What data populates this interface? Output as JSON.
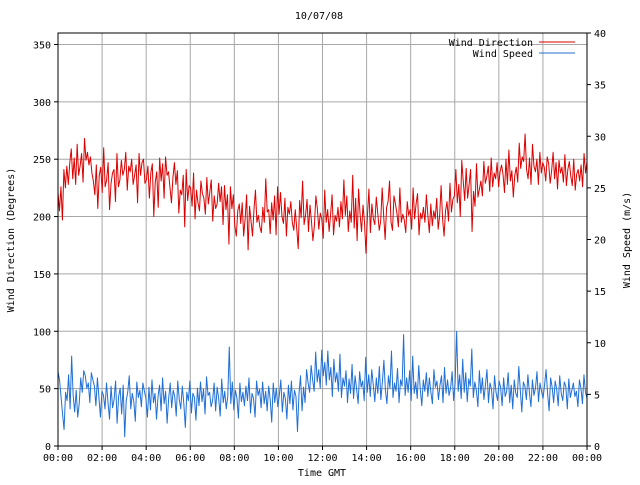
{
  "chart_data": {
    "type": "line",
    "title": "10/07/08",
    "xlabel": "Time GMT",
    "ylabel_left": "Wind Direction (Degrees)",
    "ylabel_right": "Wind Speed (m/s)",
    "x_ticks": [
      "00:00",
      "02:00",
      "04:00",
      "06:00",
      "08:00",
      "10:00",
      "12:00",
      "14:00",
      "16:00",
      "18:00",
      "20:00",
      "22:00",
      "00:00"
    ],
    "y_left_ticks": [
      "0",
      "50",
      "100",
      "150",
      "200",
      "250",
      "300",
      "350"
    ],
    "y_right_ticks": [
      "0",
      "5",
      "10",
      "15",
      "20",
      "25",
      "30",
      "35",
      "40"
    ],
    "y_left_range": [
      0,
      360
    ],
    "y_right_range": [
      0,
      40
    ],
    "grid": true,
    "legend_position": "top-right",
    "series": [
      {
        "name": "Wind Direction",
        "axis": "left",
        "color": "#dd0000",
        "values": [
          221,
          205,
          226,
          197,
          241,
          225,
          244,
          228,
          247,
          259,
          233,
          251,
          228,
          263,
          236,
          244,
          255,
          230,
          268,
          249,
          256,
          245,
          252,
          238,
          231,
          219,
          245,
          207,
          236,
          243,
          221,
          260,
          226,
          232,
          247,
          206,
          229,
          238,
          241,
          213,
          255,
          226,
          232,
          249,
          236,
          241,
          256,
          223,
          244,
          239,
          250,
          228,
          236,
          245,
          212,
          255,
          236,
          247,
          250,
          229,
          232,
          244,
          216,
          238,
          246,
          200,
          230,
          239,
          208,
          251,
          231,
          246,
          216,
          252,
          236,
          239,
          225,
          212,
          234,
          247,
          228,
          240,
          203,
          223,
          219,
          236,
          191,
          241,
          214,
          227,
          225,
          209,
          238,
          198,
          223,
          212,
          205,
          231,
          220,
          216,
          202,
          234,
          211,
          221,
          232,
          196,
          218,
          207,
          211,
          229,
          213,
          226,
          193,
          227,
          206,
          219,
          176,
          226,
          207,
          219,
          192,
          183,
          205,
          211,
          194,
          212,
          183,
          198,
          219,
          171,
          209,
          196,
          183,
          206,
          223,
          195,
          201,
          191,
          186,
          208,
          195,
          233,
          204,
          206,
          185,
          212,
          197,
          218,
          184,
          226,
          202,
          221,
          200,
          194,
          216,
          183,
          208,
          202,
          213,
          195,
          188,
          206,
          190,
          172,
          214,
          199,
          231,
          193,
          201,
          215,
          187,
          210,
          196,
          179,
          192,
          218,
          207,
          189,
          203,
          198,
          181,
          223,
          195,
          206,
          187,
          202,
          219,
          184,
          201,
          196,
          208,
          191,
          213,
          198,
          232,
          201,
          218,
          187,
          205,
          195,
          236,
          190,
          216,
          179,
          224,
          202,
          187,
          210,
          195,
          168,
          201,
          224,
          186,
          211,
          198,
          193,
          217,
          203,
          188,
          196,
          225,
          201,
          180,
          208,
          213,
          231,
          195,
          188,
          218,
          211,
          203,
          191,
          225,
          195,
          202,
          197,
          186,
          213,
          201,
          206,
          189,
          225,
          198,
          211,
          220,
          184,
          203,
          198,
          208,
          195,
          219,
          201,
          186,
          211,
          192,
          205,
          198,
          216,
          189,
          201,
          227,
          198,
          183,
          205,
          213,
          196,
          229,
          204,
          215,
          218,
          241,
          212,
          228,
          200,
          249,
          231,
          214,
          242,
          216,
          228,
          241,
          187,
          222,
          209,
          246,
          217,
          224,
          231,
          218,
          248,
          229,
          235,
          244,
          222,
          251,
          226,
          238,
          233,
          247,
          226,
          239,
          245,
          237,
          221,
          250,
          228,
          258,
          231,
          240,
          217,
          236,
          243,
          230,
          264,
          242,
          252,
          248,
          272,
          241,
          233,
          251,
          228,
          263,
          244,
          239,
          250,
          228,
          256,
          238,
          247,
          243,
          231,
          252,
          246,
          229,
          240,
          256,
          233,
          247,
          224,
          249,
          238,
          243,
          230,
          254,
          227,
          241,
          248,
          235,
          227,
          250,
          223,
          237,
          241,
          231,
          245,
          226,
          255,
          238,
          248
        ],
        "note_values": "degrees, 6-minute samples from 00:00 to 00:00"
      },
      {
        "name": "Wind Speed",
        "axis": "right",
        "color": "#1f6fd6",
        "values": [
          7.2,
          6.4,
          4.8,
          3.1,
          1.6,
          5.2,
          4.4,
          6.9,
          3.6,
          8.7,
          4.9,
          3.3,
          5.4,
          2.8,
          4.1,
          6.6,
          5.2,
          7.3,
          6.8,
          5.6,
          6.1,
          4.2,
          7.1,
          6.4,
          5.8,
          3.9,
          6.6,
          4.7,
          2.8,
          5.3,
          4.9,
          3.6,
          6.1,
          4.2,
          2.6,
          5.8,
          3.7,
          4.5,
          6.3,
          2.2,
          4.8,
          5.6,
          3.1,
          5.9,
          0.9,
          4.4,
          5.2,
          6.8,
          3.6,
          5.1,
          4.3,
          2.4,
          6.2,
          4.7,
          5.4,
          3.8,
          6.1,
          5.3,
          4.6,
          2.8,
          5.7,
          3.5,
          6.4,
          4.2,
          5.1,
          2.6,
          4.8,
          5.9,
          3.4,
          6.6,
          4.1,
          5.3,
          2.2,
          4.6,
          6.1,
          3.7,
          5.4,
          4.8,
          2.9,
          6.3,
          4.5,
          3.6,
          5.8,
          4.1,
          1.8,
          5.2,
          4.4,
          6.3,
          3.2,
          5.1,
          4.7,
          2.5,
          5.6,
          3.9,
          6.2,
          4.3,
          5.5,
          3.1,
          6.7,
          4.9,
          5.2,
          3.8,
          4.4,
          6.1,
          3.4,
          5.7,
          4.6,
          2.9,
          6.5,
          4.2,
          5.3,
          3.6,
          4.8,
          9.6,
          4.1,
          6.2,
          3.5,
          5.4,
          4.7,
          2.7,
          6.1,
          4.3,
          5.2,
          3.9,
          5.8,
          4.4,
          6.6,
          3.2,
          5.1,
          4.6,
          2.8,
          6.3,
          4.9,
          5.5,
          3.7,
          6.2,
          4.1,
          5.3,
          3.4,
          5.8,
          4.5,
          2.3,
          6.1,
          4.2,
          5.6,
          3.8,
          4.9,
          6.4,
          3.3,
          5.2,
          4.6,
          2.6,
          5.9,
          4.1,
          6.3,
          3.5,
          5.4,
          4.8,
          1.4,
          5.1,
          6.8,
          3.4,
          5.7,
          4.2,
          7.4,
          6.1,
          5.2,
          7.8,
          6.4,
          5.3,
          9.1,
          6.2,
          7.4,
          5.6,
          9.3,
          6.8,
          8.1,
          5.9,
          9.2,
          6.4,
          7.6,
          4.8,
          8.4,
          6.2,
          7.1,
          5.3,
          8.9,
          4.7,
          6.6,
          5.8,
          7.3,
          4.2,
          6.5,
          5.1,
          7.9,
          4.6,
          6.8,
          5.5,
          4.1,
          7.2,
          5.7,
          6.3,
          4.4,
          8.6,
          5.2,
          6.9,
          4.8,
          7.4,
          5.9,
          4.3,
          6.6,
          5.1,
          7.7,
          4.5,
          6.2,
          8.3,
          5.4,
          4.1,
          6.8,
          5.6,
          9.2,
          4.7,
          6.1,
          5.3,
          7.5,
          4.2,
          6.4,
          5.8,
          10.8,
          4.9,
          6.6,
          5.2,
          7.3,
          4.4,
          8.7,
          5.1,
          6.2,
          4.6,
          7.8,
          5.5,
          3.9,
          6.4,
          5.3,
          7.1,
          4.8,
          6.6,
          5.2,
          4.1,
          7.4,
          5.7,
          6.3,
          4.5,
          5.9,
          6.8,
          4.2,
          7.6,
          5.1,
          6.4,
          4.9,
          5.6,
          7.2,
          4.4,
          6.1,
          11.1,
          5.3,
          6.9,
          4.6,
          8.4,
          5.2,
          7.1,
          4.3,
          6.5,
          5.8,
          9.4,
          4.7,
          6.2,
          5.4,
          3.8,
          7.3,
          5.1,
          6.6,
          4.5,
          5.9,
          7.4,
          4.2,
          6.1,
          5.5,
          3.6,
          6.8,
          5.2,
          4.4,
          6.3,
          5.7,
          3.9,
          6.6,
          4.8,
          5.3,
          7.1,
          4.2,
          5.9,
          3.6,
          6.4,
          5.1,
          4.7,
          7.7,
          5.4,
          3.3,
          6.2,
          5.8,
          4.5,
          6.9,
          5.2,
          3.8,
          6.4,
          4.9,
          5.6,
          7.2,
          4.3,
          6.1,
          5.3,
          4.6,
          5.9,
          7.4,
          5.1,
          3.4,
          6.6,
          5.7,
          4.2,
          6.3,
          5.5,
          3.9,
          6.8,
          5.1,
          4.4,
          6.2,
          5.8,
          3.6,
          6.5,
          4.7,
          5.4,
          6.1,
          4.8,
          5.3,
          3.8,
          6.4,
          5.6,
          4.1,
          6.9,
          5.2,
          4.6
        ]
      }
    ]
  }
}
